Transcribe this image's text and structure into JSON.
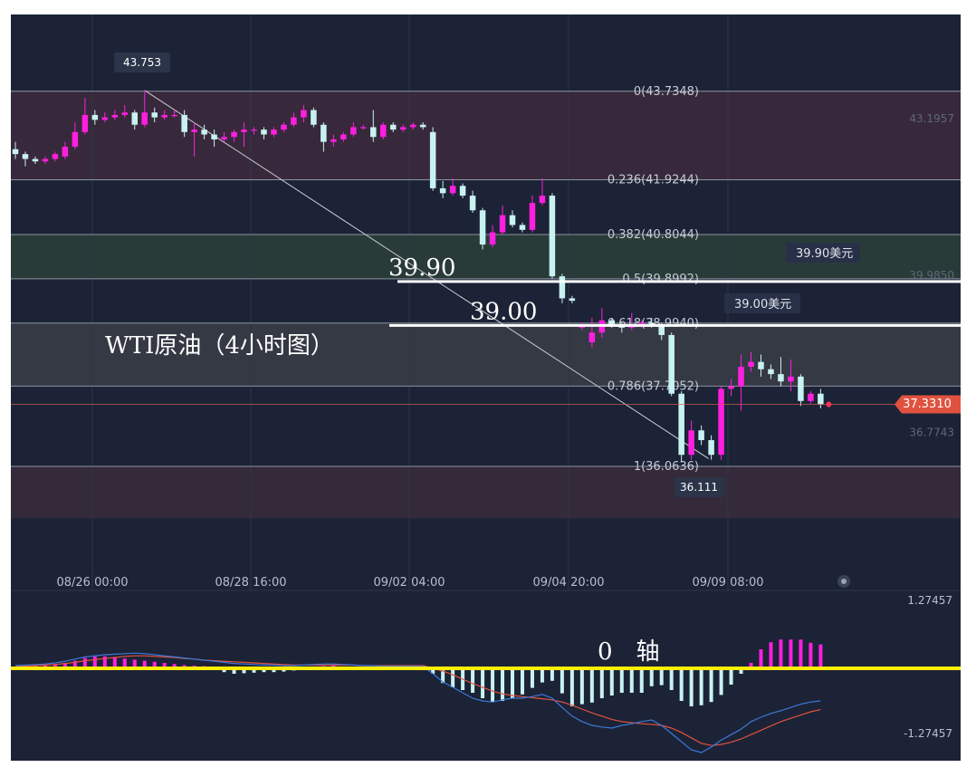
{
  "chart_data": {
    "type": "candlestick",
    "title": "WTI原油（4小时图）",
    "colors": {
      "up": "#ff1fe0",
      "down": "#c8f2f2",
      "background": "#1c2336",
      "last_price": "#e0523f",
      "zero_axis": "#ffee00",
      "macd_line": "#3c78d8",
      "signal_line": "#e0523f"
    },
    "price_axis": {
      "range": [
        35.2,
        44.2
      ],
      "ticks": [
        "43.1957",
        "39.9850",
        "36.7743"
      ]
    },
    "time_axis": {
      "labels": [
        "08/26 00:00",
        "08/28 16:00",
        "09/02 04:00",
        "09/04 20:00",
        "09/09 08:00"
      ]
    },
    "markers": {
      "high": "43.753",
      "low": "36.111"
    },
    "last_price": {
      "value": 37.331,
      "label": "37.3310"
    },
    "fibonacci": [
      {
        "label": "0(43.7348)",
        "value": 43.7348
      },
      {
        "label": "0.236(41.9244)",
        "value": 41.9244
      },
      {
        "label": "0.382(40.8044)",
        "value": 40.8044
      },
      {
        "label": "0.5(39.8992)",
        "value": 39.8992
      },
      {
        "label": "0.618(38.9940)",
        "value": 38.994
      },
      {
        "label": "0.786(37.7052)",
        "value": 37.7052
      },
      {
        "label": "1(36.0636)",
        "value": 36.0636
      }
    ],
    "levels": [
      {
        "value": 39.9,
        "text": "39.90",
        "tag": "39.90美元"
      },
      {
        "value": 39.0,
        "text": "39.00",
        "tag": "39.00美元"
      }
    ],
    "candles": [
      [
        42.55,
        42.45,
        42.7,
        42.35
      ],
      [
        42.45,
        42.35,
        42.5,
        42.2
      ],
      [
        42.35,
        42.3,
        42.4,
        42.25
      ],
      [
        42.3,
        42.35,
        42.4,
        42.25
      ],
      [
        42.35,
        42.45,
        42.5,
        42.3
      ],
      [
        42.4,
        42.6,
        42.7,
        42.35
      ],
      [
        42.6,
        42.9,
        43.1,
        42.55
      ],
      [
        42.9,
        43.25,
        43.6,
        42.85
      ],
      [
        43.25,
        43.15,
        43.35,
        43.05
      ],
      [
        43.15,
        43.2,
        43.3,
        43.1
      ],
      [
        43.2,
        43.25,
        43.35,
        43.15
      ],
      [
        43.25,
        43.3,
        43.45,
        43.2
      ],
      [
        43.3,
        43.05,
        43.35,
        42.95
      ],
      [
        43.05,
        43.3,
        43.75,
        43.0
      ],
      [
        43.3,
        43.2,
        43.4,
        43.1
      ],
      [
        43.2,
        43.25,
        43.35,
        43.15
      ],
      [
        43.25,
        43.25,
        43.35,
        43.2
      ],
      [
        43.25,
        42.9,
        43.35,
        42.8
      ],
      [
        42.9,
        42.95,
        43.1,
        42.4
      ],
      [
        42.95,
        42.85,
        43.05,
        42.75
      ],
      [
        42.85,
        42.75,
        42.95,
        42.6
      ],
      [
        42.75,
        42.8,
        42.9,
        42.7
      ],
      [
        42.8,
        42.9,
        42.95,
        42.7
      ],
      [
        42.9,
        42.95,
        43.1,
        42.6
      ],
      [
        42.95,
        42.95,
        43.0,
        42.85
      ],
      [
        42.95,
        42.85,
        43.0,
        42.75
      ],
      [
        42.85,
        42.95,
        43.0,
        42.8
      ],
      [
        42.95,
        43.05,
        43.1,
        42.9
      ],
      [
        43.05,
        43.2,
        43.3,
        43.0
      ],
      [
        43.2,
        43.35,
        43.45,
        43.1
      ],
      [
        43.35,
        43.05,
        43.4,
        43.0
      ],
      [
        43.05,
        42.7,
        43.1,
        42.5
      ],
      [
        42.7,
        42.75,
        42.85,
        42.6
      ],
      [
        42.75,
        42.85,
        42.9,
        42.7
      ],
      [
        42.85,
        43.0,
        43.1,
        42.8
      ],
      [
        43.0,
        43.0,
        43.05,
        42.95
      ],
      [
        43.0,
        42.8,
        43.35,
        42.7
      ],
      [
        42.8,
        43.05,
        43.1,
        42.75
      ],
      [
        43.05,
        42.95,
        43.1,
        42.9
      ],
      [
        42.95,
        43.0,
        43.05,
        42.9
      ],
      [
        43.0,
        43.05,
        43.1,
        42.95
      ],
      [
        43.05,
        43.0,
        43.1,
        42.95
      ],
      [
        42.9,
        41.75,
        43.0,
        41.7
      ],
      [
        41.75,
        41.65,
        41.9,
        41.55
      ],
      [
        41.65,
        41.8,
        41.95,
        41.6
      ],
      [
        41.8,
        41.6,
        41.85,
        41.55
      ],
      [
        41.6,
        41.3,
        41.7,
        41.25
      ],
      [
        41.3,
        40.6,
        41.35,
        40.5
      ],
      [
        40.6,
        40.85,
        41.0,
        40.55
      ],
      [
        40.85,
        41.2,
        41.4,
        40.8
      ],
      [
        41.2,
        41.0,
        41.3,
        40.95
      ],
      [
        41.0,
        40.9,
        41.05,
        40.85
      ],
      [
        40.9,
        41.45,
        41.6,
        40.85
      ],
      [
        41.45,
        41.6,
        41.95,
        41.4
      ],
      [
        41.6,
        39.95,
        41.65,
        39.9
      ],
      [
        39.95,
        39.5,
        40.0,
        39.4
      ],
      [
        39.5,
        39.45,
        39.55,
        39.4
      ],
      [
        38.9,
        38.95,
        39.0,
        38.85
      ],
      [
        38.6,
        38.8,
        39.1,
        38.5
      ],
      [
        38.8,
        39.05,
        39.3,
        38.7
      ],
      [
        39.05,
        38.95,
        39.1,
        38.9
      ],
      [
        38.95,
        38.9,
        39.0,
        38.8
      ],
      [
        38.9,
        38.95,
        39.2,
        38.85
      ],
      [
        38.95,
        39.0,
        39.05,
        38.9
      ],
      [
        39.0,
        38.95,
        39.1,
        38.9
      ],
      [
        38.95,
        38.75,
        39.0,
        38.65
      ],
      [
        38.75,
        37.55,
        38.8,
        37.5
      ],
      [
        37.55,
        36.3,
        37.6,
        36.15
      ],
      [
        36.3,
        36.8,
        37.0,
        36.2
      ],
      [
        36.8,
        36.6,
        36.9,
        36.5
      ],
      [
        36.6,
        36.3,
        36.7,
        36.2
      ],
      [
        36.3,
        37.65,
        37.7,
        36.2
      ],
      [
        37.65,
        37.7,
        37.85,
        37.5
      ],
      [
        37.7,
        38.1,
        38.35,
        37.2
      ],
      [
        38.1,
        38.2,
        38.4,
        38.0
      ],
      [
        38.2,
        38.05,
        38.35,
        37.9
      ],
      [
        38.05,
        37.95,
        38.15,
        37.85
      ],
      [
        37.95,
        37.8,
        38.3,
        37.7
      ],
      [
        37.8,
        37.9,
        38.25,
        37.6
      ],
      [
        37.9,
        37.4,
        37.95,
        37.3
      ],
      [
        37.4,
        37.55,
        37.6,
        37.35
      ],
      [
        37.55,
        37.33,
        37.65,
        37.25
      ]
    ],
    "macd": {
      "range": [
        -1.27457,
        1.27457
      ],
      "axis_labels": [
        "1.27457",
        "-1.27457"
      ],
      "zero_axis_label": "0　轴",
      "histogram": [
        0.02,
        0.04,
        0.05,
        0.06,
        0.08,
        0.1,
        0.14,
        0.19,
        0.22,
        0.22,
        0.2,
        0.18,
        0.16,
        0.14,
        0.12,
        0.1,
        0.08,
        0.06,
        0.05,
        0.04,
        0.0,
        -0.07,
        -0.1,
        -0.09,
        -0.08,
        -0.07,
        -0.07,
        -0.06,
        -0.04,
        -0.02,
        0.02,
        0.04,
        0.05,
        0.03,
        0.02,
        0.0,
        0.0,
        0.0,
        0.0,
        0.0,
        0.0,
        0.0,
        -0.1,
        -0.27,
        -0.35,
        -0.4,
        -0.45,
        -0.55,
        -0.62,
        -0.6,
        -0.55,
        -0.48,
        -0.36,
        -0.26,
        -0.23,
        -0.46,
        -0.7,
        -0.66,
        -0.63,
        -0.55,
        -0.5,
        -0.45,
        -0.45,
        -0.45,
        -0.33,
        -0.31,
        -0.4,
        -0.6,
        -0.7,
        -0.68,
        -0.62,
        -0.49,
        -0.3,
        -0.1,
        0.1,
        0.35,
        0.48,
        0.53,
        0.53,
        0.53,
        0.47,
        0.44
      ],
      "macd_line": [
        0.05,
        0.06,
        0.07,
        0.08,
        0.1,
        0.13,
        0.17,
        0.21,
        0.23,
        0.25,
        0.26,
        0.27,
        0.28,
        0.27,
        0.25,
        0.23,
        0.21,
        0.19,
        0.17,
        0.15,
        0.13,
        0.11,
        0.09,
        0.08,
        0.07,
        0.06,
        0.06,
        0.05,
        0.05,
        0.06,
        0.07,
        0.08,
        0.08,
        0.07,
        0.06,
        0.05,
        0.05,
        0.04,
        0.04,
        0.04,
        0.04,
        0.04,
        -0.1,
        -0.25,
        -0.35,
        -0.45,
        -0.55,
        -0.6,
        -0.62,
        -0.58,
        -0.55,
        -0.55,
        -0.52,
        -0.48,
        -0.55,
        -0.72,
        -0.88,
        -0.98,
        -1.05,
        -1.08,
        -1.1,
        -1.05,
        -1.02,
        -0.98,
        -0.95,
        -1.05,
        -1.2,
        -1.35,
        -1.5,
        -1.55,
        -1.45,
        -1.32,
        -1.22,
        -1.12,
        -0.98,
        -0.9,
        -0.83,
        -0.78,
        -0.72,
        -0.66,
        -0.62,
        -0.6
      ],
      "signal_line": [
        0.03,
        0.04,
        0.05,
        0.06,
        0.07,
        0.09,
        0.11,
        0.14,
        0.16,
        0.18,
        0.2,
        0.22,
        0.23,
        0.23,
        0.22,
        0.21,
        0.2,
        0.18,
        0.17,
        0.15,
        0.14,
        0.13,
        0.12,
        0.11,
        0.1,
        0.09,
        0.08,
        0.07,
        0.06,
        0.06,
        0.06,
        0.06,
        0.06,
        0.06,
        0.06,
        0.05,
        0.05,
        0.05,
        0.05,
        0.05,
        0.05,
        0.05,
        0.0,
        -0.05,
        -0.12,
        -0.2,
        -0.28,
        -0.35,
        -0.42,
        -0.47,
        -0.5,
        -0.52,
        -0.54,
        -0.56,
        -0.58,
        -0.62,
        -0.68,
        -0.75,
        -0.82,
        -0.88,
        -0.94,
        -0.98,
        -1.0,
        -1.02,
        -1.03,
        -1.05,
        -1.1,
        -1.18,
        -1.28,
        -1.38,
        -1.42,
        -1.4,
        -1.36,
        -1.3,
        -1.22,
        -1.14,
        -1.06,
        -0.98,
        -0.92,
        -0.86,
        -0.8,
        -0.76
      ]
    }
  }
}
